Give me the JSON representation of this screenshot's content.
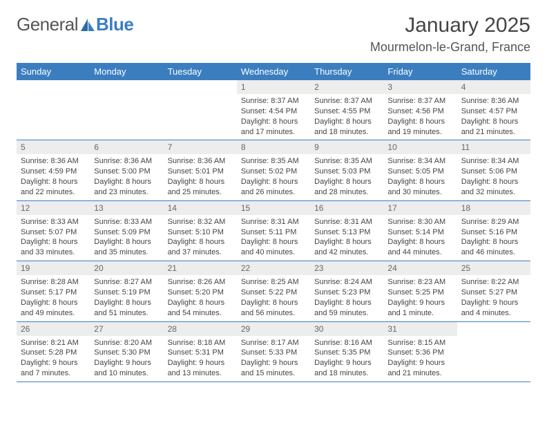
{
  "brand": {
    "word1": "General",
    "word2": "Blue"
  },
  "colors": {
    "header_bg": "#3b7ec0",
    "header_text": "#ffffff",
    "daynum_bg": "#ededed",
    "daynum_text": "#666666",
    "body_text": "#444444",
    "row_divider": "#3b7ec0",
    "page_bg": "#ffffff"
  },
  "fonts": {
    "base_family": "Arial",
    "title_size_pt": 22,
    "location_size_pt": 13,
    "weekday_size_pt": 10,
    "cell_size_pt": 8
  },
  "title": "January 2025",
  "location": "Mourmelon-le-Grand, France",
  "weekdays": [
    "Sunday",
    "Monday",
    "Tuesday",
    "Wednesday",
    "Thursday",
    "Friday",
    "Saturday"
  ],
  "layout": {
    "columns": 7,
    "rows": 5,
    "start_weekday_index": 3
  },
  "weeks": [
    [
      {
        "empty": true
      },
      {
        "empty": true
      },
      {
        "empty": true
      },
      {
        "day": "1",
        "sunrise": "Sunrise: 8:37 AM",
        "sunset": "Sunset: 4:54 PM",
        "daylight1": "Daylight: 8 hours",
        "daylight2": "and 17 minutes."
      },
      {
        "day": "2",
        "sunrise": "Sunrise: 8:37 AM",
        "sunset": "Sunset: 4:55 PM",
        "daylight1": "Daylight: 8 hours",
        "daylight2": "and 18 minutes."
      },
      {
        "day": "3",
        "sunrise": "Sunrise: 8:37 AM",
        "sunset": "Sunset: 4:56 PM",
        "daylight1": "Daylight: 8 hours",
        "daylight2": "and 19 minutes."
      },
      {
        "day": "4",
        "sunrise": "Sunrise: 8:36 AM",
        "sunset": "Sunset: 4:57 PM",
        "daylight1": "Daylight: 8 hours",
        "daylight2": "and 21 minutes."
      }
    ],
    [
      {
        "day": "5",
        "sunrise": "Sunrise: 8:36 AM",
        "sunset": "Sunset: 4:59 PM",
        "daylight1": "Daylight: 8 hours",
        "daylight2": "and 22 minutes."
      },
      {
        "day": "6",
        "sunrise": "Sunrise: 8:36 AM",
        "sunset": "Sunset: 5:00 PM",
        "daylight1": "Daylight: 8 hours",
        "daylight2": "and 23 minutes."
      },
      {
        "day": "7",
        "sunrise": "Sunrise: 8:36 AM",
        "sunset": "Sunset: 5:01 PM",
        "daylight1": "Daylight: 8 hours",
        "daylight2": "and 25 minutes."
      },
      {
        "day": "8",
        "sunrise": "Sunrise: 8:35 AM",
        "sunset": "Sunset: 5:02 PM",
        "daylight1": "Daylight: 8 hours",
        "daylight2": "and 26 minutes."
      },
      {
        "day": "9",
        "sunrise": "Sunrise: 8:35 AM",
        "sunset": "Sunset: 5:03 PM",
        "daylight1": "Daylight: 8 hours",
        "daylight2": "and 28 minutes."
      },
      {
        "day": "10",
        "sunrise": "Sunrise: 8:34 AM",
        "sunset": "Sunset: 5:05 PM",
        "daylight1": "Daylight: 8 hours",
        "daylight2": "and 30 minutes."
      },
      {
        "day": "11",
        "sunrise": "Sunrise: 8:34 AM",
        "sunset": "Sunset: 5:06 PM",
        "daylight1": "Daylight: 8 hours",
        "daylight2": "and 32 minutes."
      }
    ],
    [
      {
        "day": "12",
        "sunrise": "Sunrise: 8:33 AM",
        "sunset": "Sunset: 5:07 PM",
        "daylight1": "Daylight: 8 hours",
        "daylight2": "and 33 minutes."
      },
      {
        "day": "13",
        "sunrise": "Sunrise: 8:33 AM",
        "sunset": "Sunset: 5:09 PM",
        "daylight1": "Daylight: 8 hours",
        "daylight2": "and 35 minutes."
      },
      {
        "day": "14",
        "sunrise": "Sunrise: 8:32 AM",
        "sunset": "Sunset: 5:10 PM",
        "daylight1": "Daylight: 8 hours",
        "daylight2": "and 37 minutes."
      },
      {
        "day": "15",
        "sunrise": "Sunrise: 8:31 AM",
        "sunset": "Sunset: 5:11 PM",
        "daylight1": "Daylight: 8 hours",
        "daylight2": "and 40 minutes."
      },
      {
        "day": "16",
        "sunrise": "Sunrise: 8:31 AM",
        "sunset": "Sunset: 5:13 PM",
        "daylight1": "Daylight: 8 hours",
        "daylight2": "and 42 minutes."
      },
      {
        "day": "17",
        "sunrise": "Sunrise: 8:30 AM",
        "sunset": "Sunset: 5:14 PM",
        "daylight1": "Daylight: 8 hours",
        "daylight2": "and 44 minutes."
      },
      {
        "day": "18",
        "sunrise": "Sunrise: 8:29 AM",
        "sunset": "Sunset: 5:16 PM",
        "daylight1": "Daylight: 8 hours",
        "daylight2": "and 46 minutes."
      }
    ],
    [
      {
        "day": "19",
        "sunrise": "Sunrise: 8:28 AM",
        "sunset": "Sunset: 5:17 PM",
        "daylight1": "Daylight: 8 hours",
        "daylight2": "and 49 minutes."
      },
      {
        "day": "20",
        "sunrise": "Sunrise: 8:27 AM",
        "sunset": "Sunset: 5:19 PM",
        "daylight1": "Daylight: 8 hours",
        "daylight2": "and 51 minutes."
      },
      {
        "day": "21",
        "sunrise": "Sunrise: 8:26 AM",
        "sunset": "Sunset: 5:20 PM",
        "daylight1": "Daylight: 8 hours",
        "daylight2": "and 54 minutes."
      },
      {
        "day": "22",
        "sunrise": "Sunrise: 8:25 AM",
        "sunset": "Sunset: 5:22 PM",
        "daylight1": "Daylight: 8 hours",
        "daylight2": "and 56 minutes."
      },
      {
        "day": "23",
        "sunrise": "Sunrise: 8:24 AM",
        "sunset": "Sunset: 5:23 PM",
        "daylight1": "Daylight: 8 hours",
        "daylight2": "and 59 minutes."
      },
      {
        "day": "24",
        "sunrise": "Sunrise: 8:23 AM",
        "sunset": "Sunset: 5:25 PM",
        "daylight1": "Daylight: 9 hours",
        "daylight2": "and 1 minute."
      },
      {
        "day": "25",
        "sunrise": "Sunrise: 8:22 AM",
        "sunset": "Sunset: 5:27 PM",
        "daylight1": "Daylight: 9 hours",
        "daylight2": "and 4 minutes."
      }
    ],
    [
      {
        "day": "26",
        "sunrise": "Sunrise: 8:21 AM",
        "sunset": "Sunset: 5:28 PM",
        "daylight1": "Daylight: 9 hours",
        "daylight2": "and 7 minutes."
      },
      {
        "day": "27",
        "sunrise": "Sunrise: 8:20 AM",
        "sunset": "Sunset: 5:30 PM",
        "daylight1": "Daylight: 9 hours",
        "daylight2": "and 10 minutes."
      },
      {
        "day": "28",
        "sunrise": "Sunrise: 8:18 AM",
        "sunset": "Sunset: 5:31 PM",
        "daylight1": "Daylight: 9 hours",
        "daylight2": "and 13 minutes."
      },
      {
        "day": "29",
        "sunrise": "Sunrise: 8:17 AM",
        "sunset": "Sunset: 5:33 PM",
        "daylight1": "Daylight: 9 hours",
        "daylight2": "and 15 minutes."
      },
      {
        "day": "30",
        "sunrise": "Sunrise: 8:16 AM",
        "sunset": "Sunset: 5:35 PM",
        "daylight1": "Daylight: 9 hours",
        "daylight2": "and 18 minutes."
      },
      {
        "day": "31",
        "sunrise": "Sunrise: 8:15 AM",
        "sunset": "Sunset: 5:36 PM",
        "daylight1": "Daylight: 9 hours",
        "daylight2": "and 21 minutes."
      },
      {
        "empty": true
      }
    ]
  ]
}
